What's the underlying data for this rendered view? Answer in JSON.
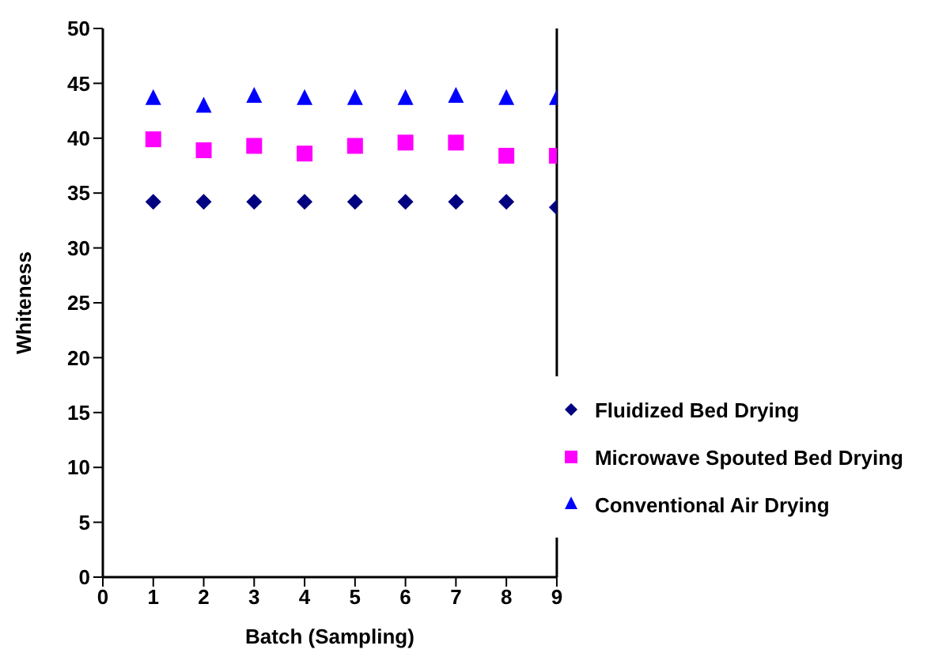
{
  "chart_data": {
    "type": "scatter",
    "xlabel": "Batch (Sampling)",
    "ylabel": "Whiteness",
    "x": [
      1,
      2,
      3,
      4,
      5,
      6,
      7,
      8,
      9
    ],
    "series": [
      {
        "name": "Fluidized Bed Drying",
        "color": "#000080",
        "marker": "diamond",
        "values": [
          34.2,
          34.2,
          34.2,
          34.2,
          34.2,
          34.2,
          34.2,
          34.2,
          33.7
        ]
      },
      {
        "name": "Microwave Spouted Bed Drying",
        "color": "#ff00ff",
        "marker": "square",
        "values": [
          39.9,
          38.9,
          39.3,
          38.6,
          39.3,
          39.6,
          39.6,
          38.4,
          38.4
        ]
      },
      {
        "name": "Conventional Air Drying",
        "color": "#0000ff",
        "marker": "triangle",
        "values": [
          43.6,
          42.9,
          43.8,
          43.6,
          43.6,
          43.6,
          43.8,
          43.6,
          43.6
        ]
      }
    ],
    "xlim": [
      0,
      9
    ],
    "xticks": [
      0,
      1,
      2,
      3,
      4,
      5,
      6,
      7,
      8,
      9
    ],
    "ylim": [
      0,
      50
    ],
    "yticks": [
      0,
      5,
      10,
      15,
      20,
      25,
      30,
      35,
      40,
      45,
      50
    ],
    "ref_lines": [
      {
        "axis": "x",
        "value": 9,
        "color": "#000000"
      }
    ],
    "grid": false,
    "legend": "bottom right"
  }
}
